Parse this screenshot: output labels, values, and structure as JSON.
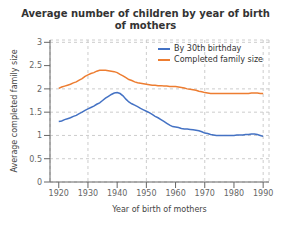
{
  "chart_data": {
    "type": "line",
    "title": "Average number of children by year of birth\nof mothers",
    "x_label": "Year of birth of mothers",
    "y_label": "Average completed family size",
    "x": [
      1920,
      1921,
      1922,
      1923,
      1924,
      1925,
      1926,
      1927,
      1928,
      1929,
      1930,
      1931,
      1932,
      1933,
      1934,
      1935,
      1936,
      1937,
      1938,
      1939,
      1940,
      1941,
      1942,
      1943,
      1944,
      1945,
      1946,
      1947,
      1948,
      1949,
      1950,
      1951,
      1952,
      1953,
      1954,
      1955,
      1956,
      1957,
      1958,
      1959,
      1960,
      1961,
      1962,
      1963,
      1964,
      1965,
      1966,
      1967,
      1968,
      1969,
      1970,
      1971,
      1972,
      1973,
      1974,
      1975,
      1976,
      1977,
      1978,
      1979,
      1980,
      1981,
      1982,
      1983,
      1984,
      1985,
      1986,
      1987,
      1988,
      1989,
      1990
    ],
    "series": [
      {
        "name": "By 30th birthday",
        "color": "#4472c4",
        "values": [
          1.3,
          1.31,
          1.34,
          1.36,
          1.38,
          1.41,
          1.43,
          1.47,
          1.5,
          1.54,
          1.57,
          1.6,
          1.63,
          1.67,
          1.7,
          1.75,
          1.8,
          1.84,
          1.88,
          1.91,
          1.92,
          1.9,
          1.85,
          1.78,
          1.72,
          1.68,
          1.65,
          1.62,
          1.58,
          1.55,
          1.52,
          1.49,
          1.45,
          1.41,
          1.38,
          1.34,
          1.3,
          1.26,
          1.22,
          1.19,
          1.18,
          1.17,
          1.15,
          1.14,
          1.14,
          1.13,
          1.12,
          1.11,
          1.1,
          1.08,
          1.05,
          1.04,
          1.02,
          1.01,
          1.0,
          1.0,
          1.0,
          1.0,
          1.0,
          1.0,
          1.0,
          1.01,
          1.01,
          1.01,
          1.02,
          1.02,
          1.03,
          1.03,
          1.02,
          1.0,
          0.98
        ]
      },
      {
        "name": "Completed family size",
        "color": "#ed7d31",
        "values": [
          2.01,
          2.04,
          2.06,
          2.08,
          2.1,
          2.13,
          2.15,
          2.19,
          2.22,
          2.27,
          2.3,
          2.33,
          2.35,
          2.38,
          2.4,
          2.4,
          2.4,
          2.39,
          2.38,
          2.37,
          2.35,
          2.31,
          2.28,
          2.24,
          2.2,
          2.18,
          2.15,
          2.13,
          2.12,
          2.11,
          2.1,
          2.09,
          2.08,
          2.08,
          2.07,
          2.07,
          2.06,
          2.06,
          2.05,
          2.05,
          2.05,
          2.04,
          2.03,
          2.02,
          2.0,
          1.99,
          1.98,
          1.97,
          1.95,
          1.94,
          1.92,
          1.91,
          1.9,
          1.9,
          1.9,
          1.9,
          1.9,
          1.9,
          1.9,
          1.9,
          1.9,
          1.9,
          1.9,
          1.9,
          1.9,
          1.9,
          1.91,
          1.91,
          1.91,
          1.9,
          1.9
        ]
      }
    ],
    "xlim": [
      1917,
      1992
    ],
    "ylim": [
      0,
      3.05
    ],
    "xticks": [
      1920,
      1930,
      1940,
      1950,
      1960,
      1970,
      1980,
      1990
    ],
    "yticks": [
      0,
      0.5,
      1,
      1.5,
      2,
      2.5,
      3
    ],
    "grid": true,
    "legend": "upper right"
  }
}
